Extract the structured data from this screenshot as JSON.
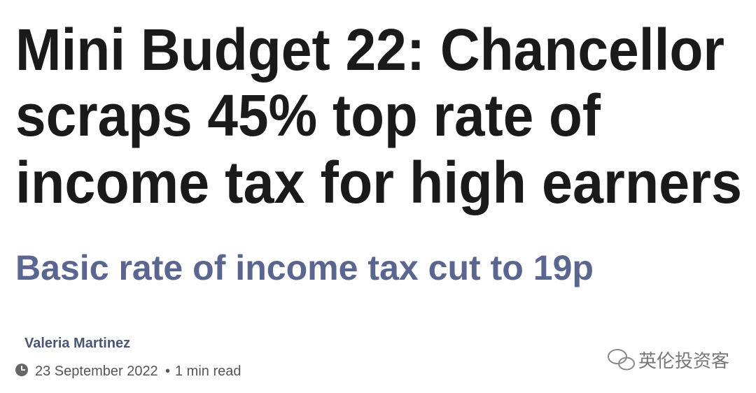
{
  "article": {
    "headline_lines": [
      "Mini Budget 22: Chancellor",
      "scraps 45% top rate of",
      "income tax for high earners"
    ],
    "subheadline": "Basic rate of income tax cut to 19p",
    "author": "Valeria Martinez",
    "date": "23 September 2022",
    "separator": "•",
    "read_time": "1 min read",
    "watermark": "英伦投资客"
  }
}
